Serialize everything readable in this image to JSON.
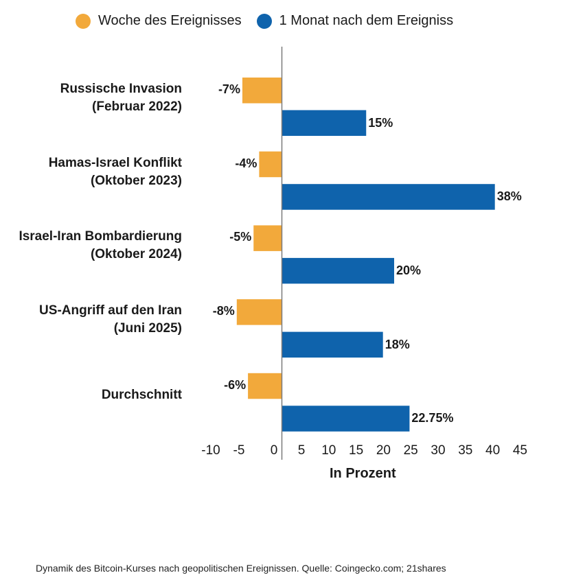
{
  "chart_data": {
    "type": "bar",
    "orientation": "horizontal",
    "title": "",
    "xlabel": "In Prozent",
    "ylabel": "",
    "xlim": [
      -10,
      45
    ],
    "grid": false,
    "legend_position": "top",
    "x_ticks": [
      "-10",
      "-5",
      "0",
      "5",
      "10",
      "15",
      "20",
      "25",
      "30",
      "35",
      "40",
      "45"
    ],
    "categories": [
      [
        "Russische Invasion",
        "(Februar 2022)"
      ],
      [
        "Hamas-Israel Konflikt",
        "(Oktober 2023)"
      ],
      [
        "Israel-Iran Bombardierung",
        "(Oktober 2024)"
      ],
      [
        "US-Angriff auf den Iran",
        "(Juni 2025)"
      ],
      [
        "Durchschnitt"
      ]
    ],
    "series": [
      {
        "name": "Woche des Ereignisses",
        "color": "#F2A93B",
        "values": [
          -7,
          -4,
          -5,
          -8,
          -6
        ],
        "labels": [
          "-7%",
          "-4%",
          "-5%",
          "-8%",
          "-6%"
        ]
      },
      {
        "name": "1 Monat nach dem Ereigniss",
        "color": "#0F63AC",
        "values": [
          15,
          38,
          20,
          18,
          22.75
        ],
        "labels": [
          "15%",
          "38%",
          "20%",
          "18%",
          "22.75%"
        ]
      }
    ]
  },
  "caption": "Dynamik des Bitcoin-Kurses nach geopolitischen Ereignissen. Quelle: Coingecko.com; 21shares"
}
